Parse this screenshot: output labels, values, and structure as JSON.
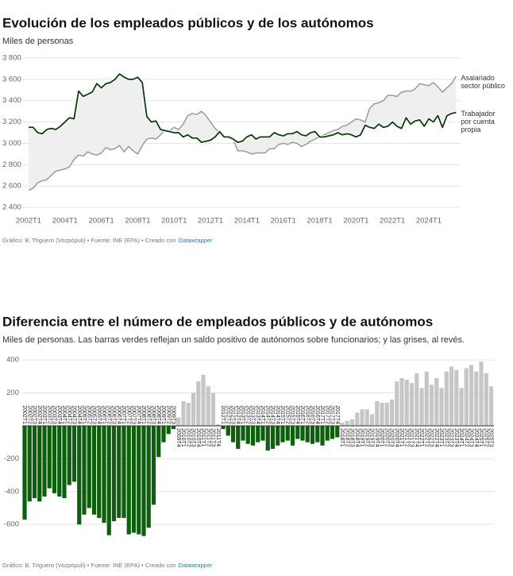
{
  "chart_data": [
    {
      "type": "line",
      "title": "Evolución de los empleados públicos y de los autónomos",
      "subtitle": "Miles de personas",
      "source": "Gráfico: B. Triguero (Vozpópuli) • Fuente: INE (EPA) • Creado con",
      "credit": "Datawrapper",
      "categories": [
        "2002T1",
        null,
        null,
        null,
        null,
        null,
        null,
        null,
        "2004T1",
        null,
        null,
        null,
        null,
        null,
        null,
        null,
        "2006T1",
        null,
        null,
        null,
        null,
        null,
        null,
        null,
        "2008T1",
        null,
        null,
        null,
        null,
        null,
        null,
        null,
        "2010T1",
        null,
        null,
        null,
        null,
        null,
        null,
        null,
        "2012T1",
        null,
        null,
        null,
        null,
        null,
        null,
        null,
        "2014T1",
        null,
        null,
        null,
        null,
        null,
        null,
        null,
        "2016T1",
        null,
        null,
        null,
        null,
        null,
        null,
        null,
        "2018T1",
        null,
        null,
        null,
        null,
        null,
        null,
        null,
        "2020T1",
        null,
        null,
        null,
        null,
        null,
        null,
        null,
        "2022T1",
        null,
        null,
        null,
        null,
        null,
        null,
        null,
        "2024T1",
        null,
        null,
        null,
        null,
        null,
        null
      ],
      "ylim": [
        2400,
        3800
      ],
      "yticks": [
        {
          "value": 2400,
          "label": "2 400"
        },
        {
          "value": 2600,
          "label": "2 600"
        },
        {
          "value": 2800,
          "label": "2 800"
        },
        {
          "value": 3000,
          "label": "3 000"
        },
        {
          "value": 3200,
          "label": "3 200"
        },
        {
          "value": 3400,
          "label": "3 400"
        },
        {
          "value": 3600,
          "label": "3 600"
        },
        {
          "value": 3800,
          "label": "3 800"
        }
      ],
      "grid": true,
      "band_color": "#efefef",
      "series": [
        {
          "name": "Asalariado sector público",
          "color": "#9a9a9a",
          "values": [
            2560,
            2580,
            2630,
            2650,
            2660,
            2700,
            2740,
            2750,
            2760,
            2780,
            2850,
            2890,
            2880,
            2920,
            2900,
            2890,
            2910,
            2960,
            2940,
            2950,
            2980,
            2920,
            2970,
            2930,
            2900,
            2980,
            3040,
            3050,
            3040,
            3080,
            3130,
            3120,
            3150,
            3130,
            3180,
            3260,
            3280,
            3270,
            3300,
            3260,
            3200,
            3140,
            3100,
            3060,
            3050,
            3040,
            2930,
            2930,
            2920,
            2900,
            2910,
            2910,
            2910,
            2950,
            2950,
            2990,
            3000,
            2990,
            3010,
            3000,
            2970,
            2990,
            3020,
            3040,
            3060,
            3080,
            3100,
            3120,
            3130,
            3160,
            3170,
            3200,
            3230,
            3220,
            3200,
            3330,
            3370,
            3380,
            3400,
            3450,
            3450,
            3440,
            3480,
            3490,
            3490,
            3510,
            3560,
            3550,
            3540,
            3570,
            3530,
            3480,
            3520,
            3560,
            3630
          ]
        },
        {
          "name": "Trabajador por cuenta propia",
          "color": "#0d3b0d",
          "values": [
            3150,
            3150,
            3100,
            3090,
            3130,
            3140,
            3130,
            3160,
            3200,
            3240,
            3230,
            3490,
            3440,
            3460,
            3480,
            3560,
            3520,
            3560,
            3570,
            3600,
            3650,
            3620,
            3600,
            3600,
            3620,
            3570,
            3250,
            3200,
            3210,
            3130,
            3120,
            3110,
            3100,
            3100,
            3060,
            3080,
            3050,
            3050,
            3010,
            3020,
            3030,
            3060,
            3110,
            3060,
            3060,
            3040,
            3010,
            3020,
            3060,
            3080,
            3040,
            3060,
            3060,
            3060,
            3100,
            3080,
            3070,
            3090,
            3090,
            3110,
            3080,
            3070,
            3100,
            3110,
            3060,
            3060,
            3070,
            3080,
            3100,
            3080,
            3090,
            3080,
            3060,
            3080,
            3170,
            3150,
            3140,
            3180,
            3150,
            3160,
            3200,
            3160,
            3140,
            3240,
            3180,
            3210,
            3220,
            3160,
            3230,
            3200,
            3260,
            3150,
            3260,
            3280,
            3290
          ]
        }
      ]
    },
    {
      "type": "bar",
      "title": "Diferencia entre el número de empleados públicos y de autónomos",
      "subtitle": "Miles de personas. Las barras verdes reflejan un saldo positivo de autónomos sobre funcionarios; y las grises, al revés.",
      "source": "Gráfico: B. Triguero (Vozpópuli) • Fuente: INE (EPA) • Creado con",
      "credit": "Datawrapper",
      "categories": [
        "2002T1",
        "2002T2",
        "2002T3",
        "2002T4",
        "2003T1",
        "2003T2",
        "2003T3",
        "2003T4",
        "2004T1",
        "2004T2",
        "2004T3",
        "2004T4",
        "2005T1",
        "2005T2",
        "2005T3",
        "2005T4",
        "2006T1",
        "2006T2",
        "2006T3",
        "2006T4",
        "2007T1",
        "2007T2",
        "2007T3",
        "2007T4",
        "2008T1",
        "2008T2",
        "2008T3",
        "2008T4",
        "2009T1",
        "2009T2",
        "2009T3",
        "2009T4",
        "2010T1",
        "2010T2",
        "2010T3",
        "2010T4",
        "2011T1",
        "2011T2",
        "2011T3",
        "2011T4",
        "2012T1",
        "2012T2",
        "2012T3",
        "2012T4",
        "2013T1",
        "2013T2",
        "2013T3",
        "2013T4",
        "2014T1",
        "2014T2",
        "2014T3",
        "2014T4",
        "2015T1",
        "2015T2",
        "2015T3",
        "2015T4",
        "2016T1",
        "2016T2",
        "2016T3",
        "2016T4",
        "2017T1",
        "2017T2",
        "2017T3",
        "2017T4",
        "2018T1",
        "2018T2",
        "2018T3",
        "2018T4",
        "2019T1",
        "2019T2",
        "2019T3",
        "2019T4",
        "2020T1",
        "2020T2",
        "2020T3",
        "2020T4",
        "2021T1",
        "2021T2",
        "2021T3",
        "2021T4",
        "2022T1",
        "2022T2",
        "2022T3",
        "2022T4",
        "2023T1",
        "2023T2",
        "2023T3",
        "2023T4",
        "2024T1",
        "2024T2",
        "2024T3",
        "2024T4",
        "2025T1",
        "2025T2",
        "2025T3"
      ],
      "values": [
        -570,
        -460,
        -440,
        -460,
        -430,
        -380,
        -410,
        -430,
        -440,
        -360,
        -340,
        -600,
        -540,
        -500,
        -540,
        -560,
        -590,
        -665,
        -580,
        -560,
        -560,
        -660,
        -650,
        -660,
        -670,
        -620,
        -480,
        -190,
        -100,
        -50,
        -20,
        50,
        150,
        140,
        200,
        270,
        310,
        240,
        200,
        10,
        -20,
        -60,
        -100,
        -140,
        -90,
        -110,
        -120,
        -100,
        -90,
        -150,
        -140,
        -120,
        -100,
        -90,
        -120,
        -80,
        -90,
        -100,
        -110,
        -100,
        -120,
        -90,
        -80,
        -70,
        20,
        30,
        40,
        80,
        100,
        100,
        70,
        150,
        140,
        140,
        160,
        270,
        290,
        280,
        260,
        320,
        230,
        330,
        250,
        290,
        230,
        330,
        360,
        340,
        230,
        350,
        370,
        330,
        390,
        320,
        240
      ],
      "color_negative": "#0d5e0d",
      "color_positive": "#c6c6c6",
      "ylim": [
        -720,
        420
      ],
      "yticks": [
        400,
        200,
        -200,
        -400,
        -600
      ],
      "grid": true
    }
  ]
}
